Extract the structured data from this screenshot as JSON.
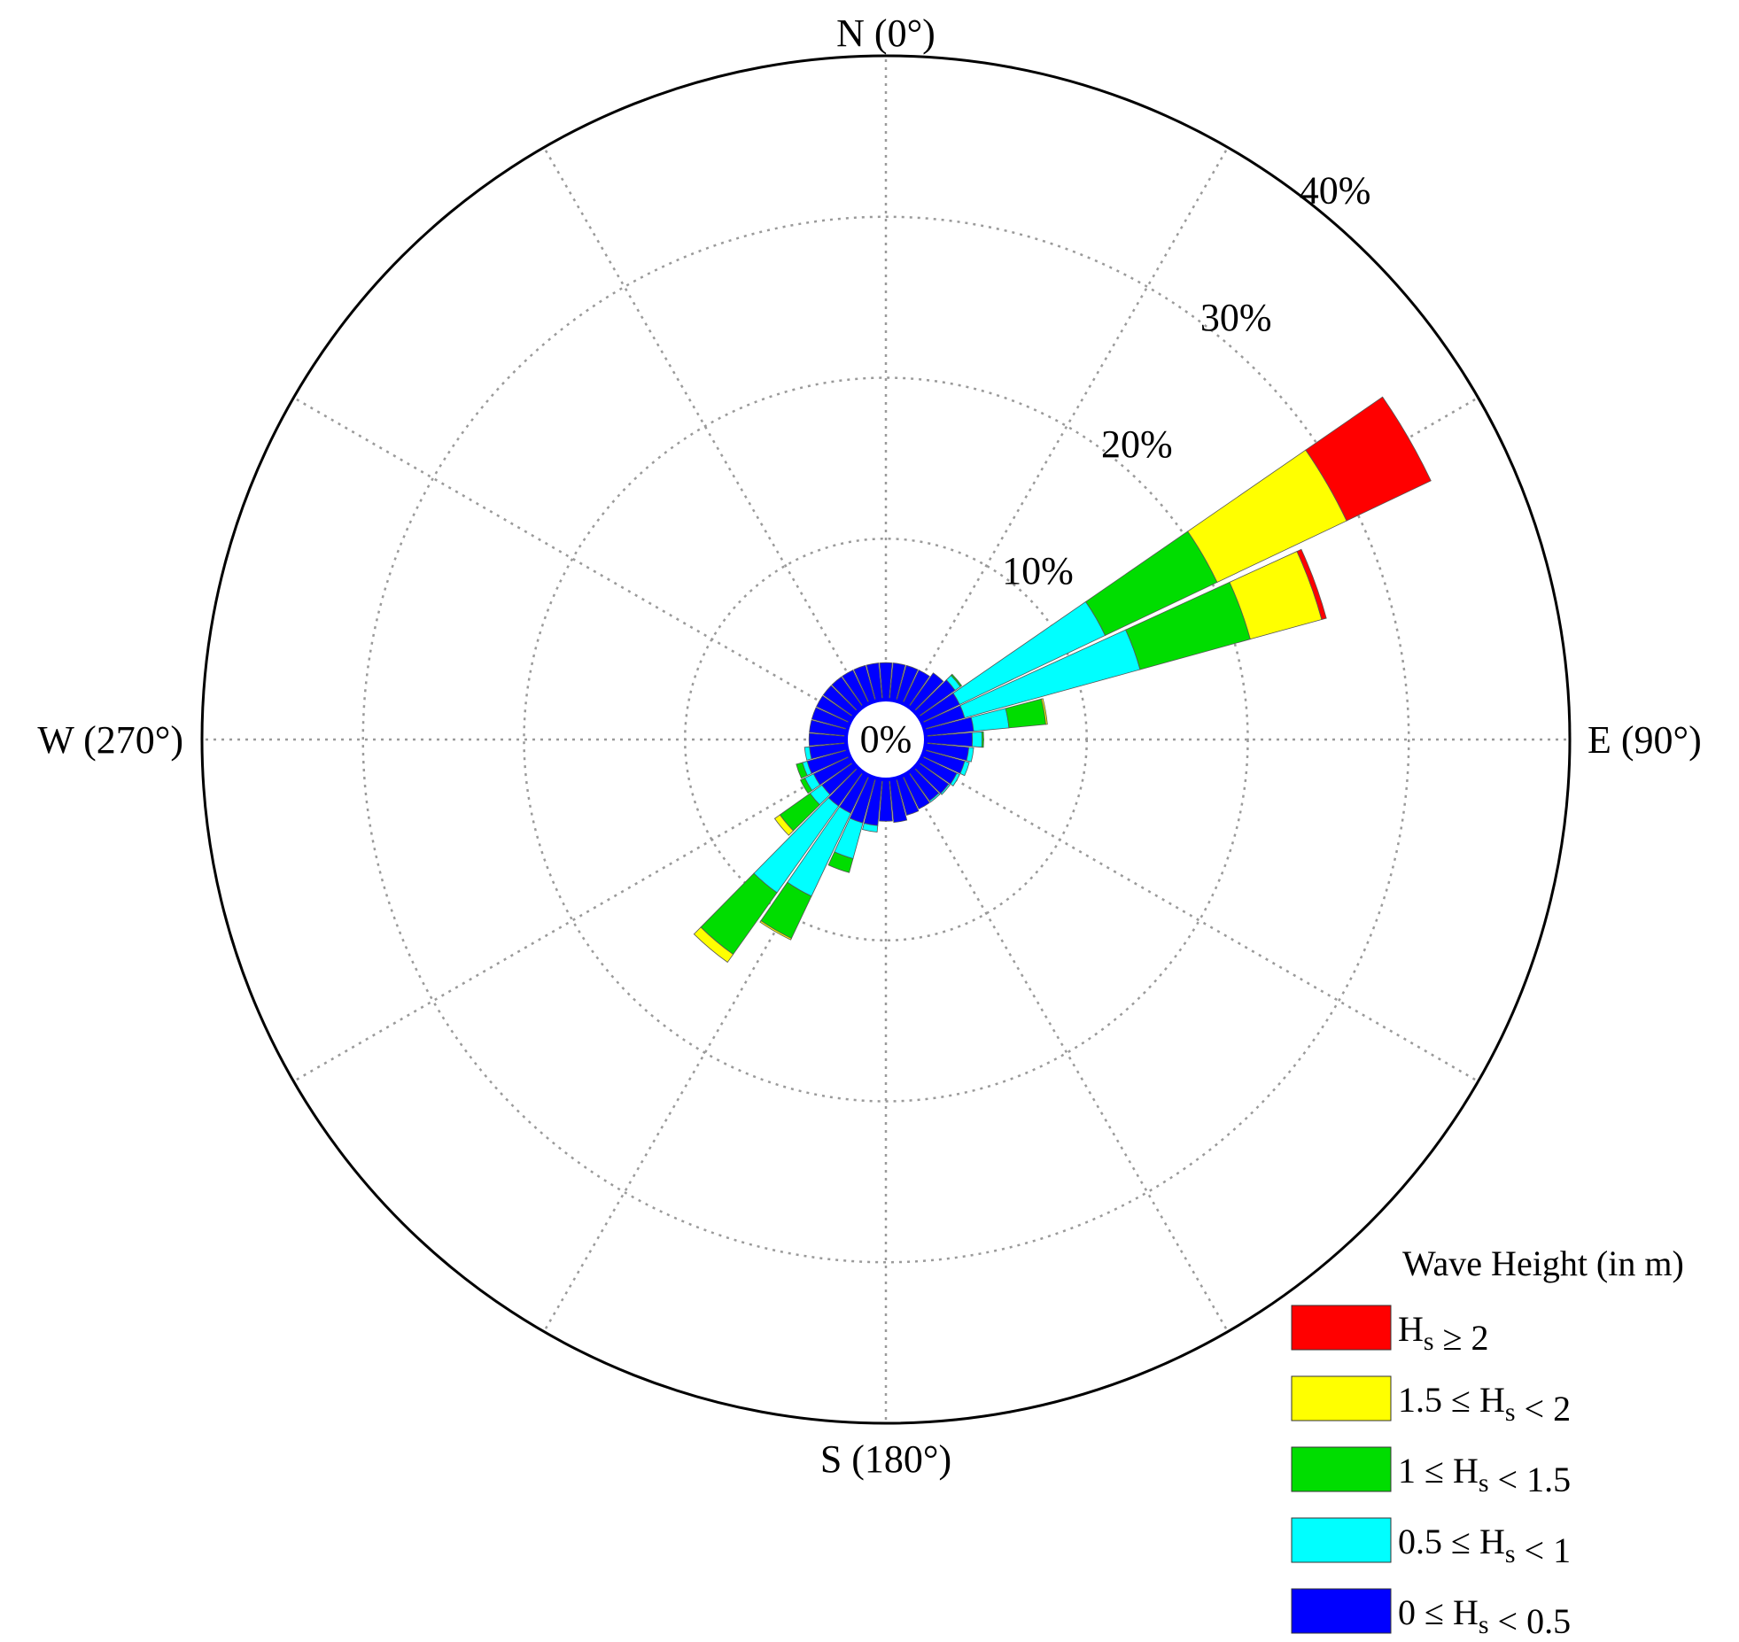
{
  "chart_data": {
    "type": "wind-rose",
    "directions": {
      "north": "N (0°)",
      "east": "E (90°)",
      "south": "S (180°)",
      "west": "W (270°)"
    },
    "center_label": "0%",
    "ring_labels": [
      "10%",
      "20%",
      "30%",
      "40%"
    ],
    "rings": [
      10,
      20,
      30,
      40
    ],
    "rlim": [
      0,
      40
    ],
    "sector_width_deg": 10,
    "grid": true,
    "legend": {
      "position": "bottom-right",
      "title": "Wave Height (in m)",
      "entries": [
        {
          "id": "hs_ge_2",
          "color": "#ff0000",
          "text": "H<sub>s</sub> ≥ 2"
        },
        {
          "id": "hs_15_2",
          "color": "#ffff00",
          "text": "1.5 ≤ H<sub>s</sub> < 2"
        },
        {
          "id": "hs_1_15",
          "color": "#00dd00",
          "text": "1 ≤ H<sub>s</sub> < 1.5"
        },
        {
          "id": "hs_05_1",
          "color": "#00ffff",
          "text": "0.5 ≤ H<sub>s</sub> < 1"
        },
        {
          "id": "hs_0_05",
          "color": "#0000ff",
          "text": "0 ≤ H<sub>s</sub> < 0.5"
        }
      ]
    },
    "bin_colors": [
      "#0000ff",
      "#00ffff",
      "#00dd00",
      "#ffff00",
      "#ff0000"
    ],
    "series": [
      {
        "direction": 60,
        "cumulative": [
          2.6,
          12.6,
          20.3,
          29.2,
          35.0
        ]
      },
      {
        "direction": 70,
        "cumulative": [
          2.6,
          13.9,
          21.0,
          25.6,
          25.9
        ]
      },
      {
        "direction": 80,
        "cumulative": [
          3.0,
          5.2,
          7.5,
          7.6,
          7.6
        ]
      },
      {
        "direction": 90,
        "cumulative": [
          2.9,
          3.5,
          3.6,
          3.6,
          3.6
        ]
      },
      {
        "direction": 100,
        "cumulative": [
          2.7,
          3.0,
          3.0,
          3.0,
          3.0
        ]
      },
      {
        "direction": 110,
        "cumulative": [
          2.6,
          2.9,
          2.9,
          2.9,
          2.9
        ]
      },
      {
        "direction": 120,
        "cumulative": [
          2.4,
          2.6,
          2.6,
          2.6,
          2.6
        ]
      },
      {
        "direction": 130,
        "cumulative": [
          2.3,
          2.4,
          2.4,
          2.4,
          2.4
        ]
      },
      {
        "direction": 140,
        "cumulative": [
          2.2,
          2.3,
          2.3,
          2.3,
          2.3
        ]
      },
      {
        "direction": 150,
        "cumulative": [
          2.3,
          2.3,
          2.3,
          2.3,
          2.3
        ]
      },
      {
        "direction": 160,
        "cumulative": [
          2.4,
          2.4,
          2.4,
          2.4,
          2.4
        ]
      },
      {
        "direction": 170,
        "cumulative": [
          2.7,
          2.7,
          2.7,
          2.7,
          2.7
        ]
      },
      {
        "direction": 180,
        "cumulative": [
          2.6,
          2.6,
          2.6,
          2.6,
          2.6
        ]
      },
      {
        "direction": 190,
        "cumulative": [
          2.9,
          3.3,
          3.3,
          3.3,
          3.3
        ]
      },
      {
        "direction": 200,
        "cumulative": [
          2.9,
          5.2,
          6.1,
          6.1,
          6.1
        ]
      },
      {
        "direction": 210,
        "cumulative": [
          2.6,
          8.3,
          11.2,
          11.3,
          11.3
        ]
      },
      {
        "direction": 220,
        "cumulative": [
          2.6,
          9.2,
          13.9,
          14.5,
          14.5
        ]
      },
      {
        "direction": 230,
        "cumulative": [
          2.4,
          3.3,
          5.6,
          6.0,
          6.0
        ]
      },
      {
        "direction": 240,
        "cumulative": [
          2.5,
          3.1,
          3.4,
          3.4,
          3.4
        ]
      },
      {
        "direction": 250,
        "cumulative": [
          2.6,
          2.9,
          3.3,
          3.3,
          3.3
        ]
      },
      {
        "direction": 260,
        "cumulative": [
          2.3,
          2.6,
          2.6,
          2.6,
          2.6
        ]
      },
      {
        "direction": 270,
        "cumulative": [
          2.3,
          2.3,
          2.3,
          2.3,
          2.3
        ]
      },
      {
        "direction": 280,
        "cumulative": [
          2.3,
          2.3,
          2.3,
          2.3,
          2.3
        ]
      },
      {
        "direction": 290,
        "cumulative": [
          2.3,
          2.3,
          2.3,
          2.3,
          2.3
        ]
      },
      {
        "direction": 300,
        "cumulative": [
          2.3,
          2.3,
          2.3,
          2.3,
          2.3
        ]
      },
      {
        "direction": 310,
        "cumulative": [
          2.3,
          2.3,
          2.3,
          2.3,
          2.3
        ]
      },
      {
        "direction": 320,
        "cumulative": [
          2.3,
          2.3,
          2.3,
          2.3,
          2.3
        ]
      },
      {
        "direction": 330,
        "cumulative": [
          2.3,
          2.3,
          2.3,
          2.3,
          2.3
        ]
      },
      {
        "direction": 340,
        "cumulative": [
          2.3,
          2.3,
          2.3,
          2.3,
          2.3
        ]
      },
      {
        "direction": 350,
        "cumulative": [
          2.3,
          2.3,
          2.3,
          2.3,
          2.3
        ]
      },
      {
        "direction": 0,
        "cumulative": [
          2.3,
          2.3,
          2.3,
          2.3,
          2.3
        ]
      },
      {
        "direction": 10,
        "cumulative": [
          2.3,
          2.3,
          2.3,
          2.3,
          2.3
        ]
      },
      {
        "direction": 20,
        "cumulative": [
          2.3,
          2.3,
          2.3,
          2.3,
          2.3
        ]
      },
      {
        "direction": 30,
        "cumulative": [
          2.3,
          2.3,
          2.3,
          2.3,
          2.3
        ]
      },
      {
        "direction": 40,
        "cumulative": [
          2.6,
          2.6,
          2.6,
          2.6,
          2.6
        ]
      },
      {
        "direction": 50,
        "cumulative": [
          2.8,
          3.2,
          3.3,
          3.3,
          3.3
        ]
      }
    ]
  }
}
